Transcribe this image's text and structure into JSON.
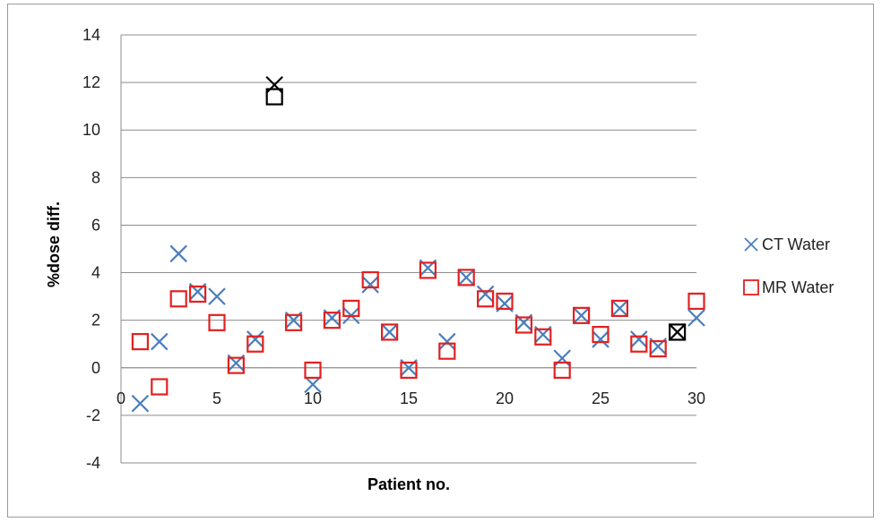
{
  "chart_data": {
    "type": "scatter",
    "title": "",
    "xlabel": "Patient no.",
    "ylabel": "%dose diff.",
    "xlim": [
      0,
      30
    ],
    "ylim": [
      -4,
      14
    ],
    "x_ticks": [
      0,
      5,
      10,
      15,
      20,
      25,
      30
    ],
    "y_ticks": [
      -4,
      -2,
      0,
      2,
      4,
      6,
      8,
      10,
      12,
      14
    ],
    "grid": "horizontal",
    "legend_position": "right",
    "series": [
      {
        "name": "CT Water",
        "marker": "x",
        "color": "#4a7ebb",
        "x": [
          1,
          2,
          3,
          4,
          5,
          6,
          7,
          8,
          9,
          10,
          11,
          12,
          13,
          14,
          15,
          16,
          17,
          18,
          19,
          20,
          21,
          22,
          23,
          24,
          25,
          26,
          27,
          28,
          29,
          30
        ],
        "y": [
          -1.5,
          1.1,
          4.8,
          3.2,
          3.0,
          0.2,
          1.2,
          11.9,
          2.0,
          -0.7,
          2.1,
          2.2,
          3.5,
          1.5,
          0.0,
          4.2,
          1.1,
          3.8,
          3.1,
          2.7,
          1.9,
          1.4,
          0.4,
          2.2,
          1.2,
          2.5,
          1.2,
          0.9,
          1.5,
          2.1
        ],
        "highlight_indices": [
          7,
          28
        ],
        "highlight_color": "#000000"
      },
      {
        "name": "MR Water",
        "marker": "square",
        "color": "#e32020",
        "x": [
          1,
          2,
          3,
          4,
          5,
          6,
          7,
          8,
          9,
          10,
          11,
          12,
          13,
          14,
          15,
          16,
          17,
          18,
          19,
          20,
          21,
          22,
          23,
          24,
          25,
          26,
          27,
          28,
          29,
          30
        ],
        "y": [
          1.1,
          -0.8,
          2.9,
          3.1,
          1.9,
          0.1,
          1.0,
          11.4,
          1.9,
          -0.1,
          2.0,
          2.5,
          3.7,
          1.5,
          -0.1,
          4.1,
          0.7,
          3.8,
          2.9,
          2.8,
          1.8,
          1.3,
          -0.1,
          2.2,
          1.4,
          2.5,
          1.0,
          0.8,
          1.5,
          2.8
        ],
        "highlight_indices": [
          7,
          28
        ],
        "highlight_color": "#000000"
      }
    ]
  }
}
